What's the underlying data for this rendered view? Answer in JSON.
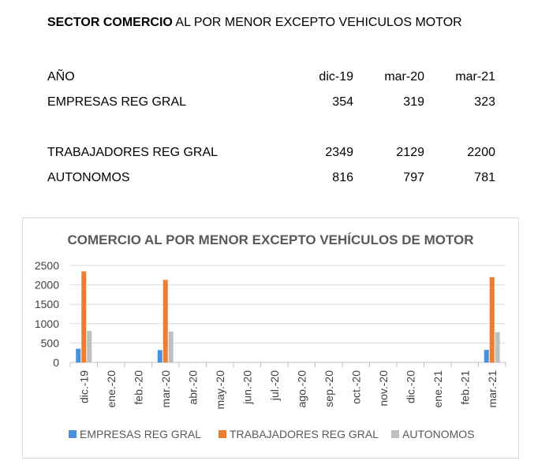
{
  "header": {
    "title_bold": "SECTOR COMERCIO",
    "title_rest": " AL POR MENOR EXCEPTO  VEHICULOS MOTOR"
  },
  "summary_table": {
    "header_label": "AÑO",
    "periods": [
      "dic-19",
      "mar-20",
      "mar-21"
    ],
    "rows": [
      {
        "label": "EMPRESAS REG GRAL",
        "values": [
          "354",
          "319",
          "323"
        ]
      },
      {
        "label": "TRABAJADORES REG GRAL",
        "values": [
          "2349",
          "2129",
          "2200"
        ]
      },
      {
        "label": "AUTONOMOS",
        "values": [
          "816",
          "797",
          "781"
        ]
      }
    ]
  },
  "chart_data": {
    "type": "bar",
    "title": "COMERCIO AL POR MENOR EXCEPTO VEHÍCULOS DE MOTOR",
    "categories": [
      "dic.-19",
      "ene.-20",
      "feb.-20",
      "mar.-20",
      "abr.-20",
      "may.-20",
      "jun.-20",
      "jul.-20",
      "ago.-20",
      "sep.-20",
      "oct.-20",
      "nov.-20",
      "dic.-20",
      "ene.-21",
      "feb.-21",
      "mar.-21"
    ],
    "series": [
      {
        "name": "EMPRESAS REG GRAL",
        "color": "#4a90d9",
        "values": [
          354,
          null,
          null,
          319,
          null,
          null,
          null,
          null,
          null,
          null,
          null,
          null,
          null,
          null,
          null,
          323
        ]
      },
      {
        "name": "TRABAJADORES REG GRAL",
        "color": "#ed7d31",
        "values": [
          2349,
          null,
          null,
          2129,
          null,
          null,
          null,
          null,
          null,
          null,
          null,
          null,
          null,
          null,
          null,
          2200
        ]
      },
      {
        "name": "AUTONOMOS",
        "color": "#bfbfbf",
        "values": [
          816,
          null,
          null,
          797,
          null,
          null,
          null,
          null,
          null,
          null,
          null,
          null,
          null,
          null,
          null,
          781
        ]
      }
    ],
    "ylim": [
      0,
      2500
    ],
    "yticks": [
      "0",
      "500",
      "1000",
      "1500",
      "2000",
      "2500"
    ],
    "grid": true,
    "legend": "bottom"
  }
}
